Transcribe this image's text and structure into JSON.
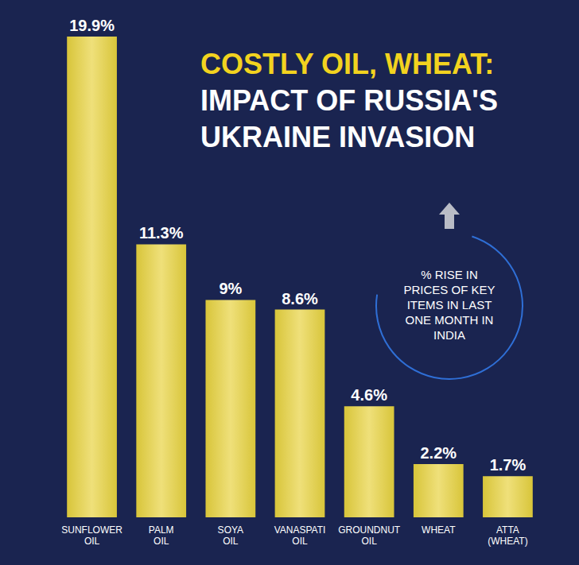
{
  "chart_data": {
    "type": "bar",
    "title": "COSTLY OIL, WHEAT:",
    "subtitle": "IMPACT OF RUSSIA'S UKRAINE INVASION",
    "annotation": "% RISE IN PRICES OF KEY ITEMS IN LAST ONE MONTH IN INDIA",
    "categories": [
      "SUNFLOWER OIL",
      "PALM OIL",
      "SOYA OIL",
      "VANASPATI OIL",
      "GROUNDNUT OIL",
      "WHEAT",
      "ATTA (WHEAT)"
    ],
    "values": [
      19.9,
      11.3,
      9,
      8.6,
      4.6,
      2.2,
      1.7
    ],
    "value_labels": [
      "19.9%",
      "11.3%",
      "9%",
      "8.6%",
      "4.6%",
      "2.2%",
      "1.7%"
    ],
    "color": "#d8c53a",
    "data_labels": true,
    "tick_labels": "x",
    "grid": false
  }
}
